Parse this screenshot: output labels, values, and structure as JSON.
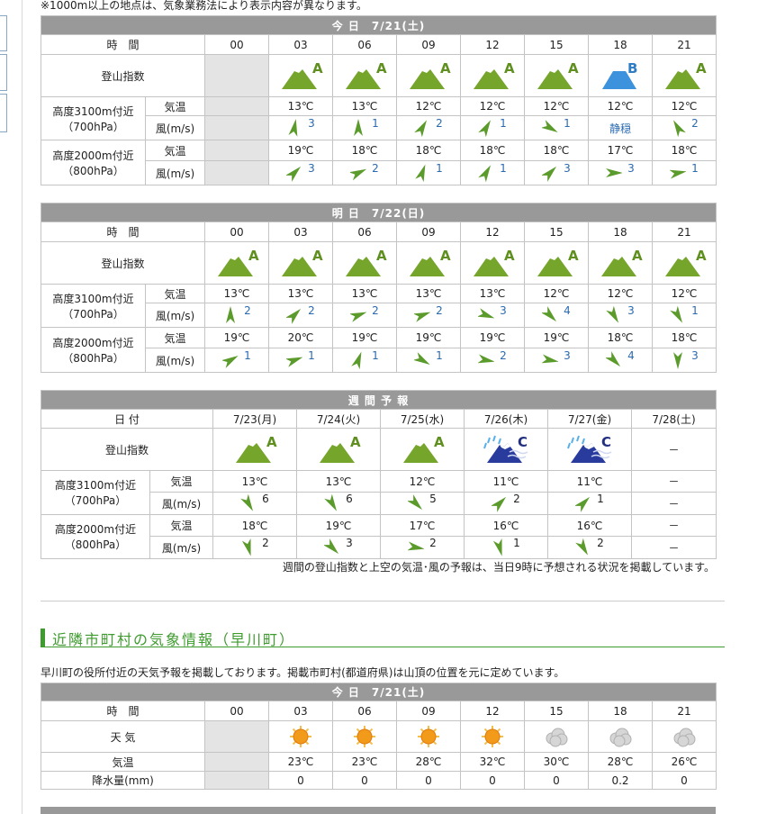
{
  "note": "※1000m以上の地点は、気象業務法により表示内容が異なります。",
  "today": {
    "title": "今 日　7/21(土)",
    "time_label": "時　間",
    "times": [
      "00",
      "03",
      "06",
      "09",
      "12",
      "15",
      "18",
      "21"
    ],
    "index_label": "登山指数",
    "index": [
      null,
      "A",
      "A",
      "A",
      "A",
      "A",
      "B",
      "A"
    ],
    "levels": [
      {
        "name": "高度3100m付近",
        "sub": "（700hPa）",
        "temp_label": "気温",
        "wind_label": "風(m/s)",
        "temp": [
          null,
          "13℃",
          "13℃",
          "12℃",
          "12℃",
          "12℃",
          "12℃",
          "12℃"
        ],
        "wind": [
          null,
          {
            "speed": 3,
            "dir": 10
          },
          {
            "speed": 1,
            "dir": 0
          },
          {
            "speed": 2,
            "dir": 30
          },
          {
            "speed": 1,
            "dir": 30
          },
          {
            "speed": 1,
            "dir": 120
          },
          {
            "speed": "静穏",
            "dir": null
          },
          {
            "speed": 2,
            "dir": -30
          }
        ]
      },
      {
        "name": "高度2000m付近",
        "sub": "（800hPa）",
        "temp_label": "気温",
        "wind_label": "風(m/s)",
        "temp": [
          null,
          "19℃",
          "18℃",
          "18℃",
          "18℃",
          "18℃",
          "17℃",
          "18℃"
        ],
        "wind": [
          null,
          {
            "speed": 3,
            "dir": 45
          },
          {
            "speed": 2,
            "dir": 65
          },
          {
            "speed": 1,
            "dir": 20
          },
          {
            "speed": 1,
            "dir": 30
          },
          {
            "speed": 3,
            "dir": 45
          },
          {
            "speed": 3,
            "dir": 90
          },
          {
            "speed": 1,
            "dir": 80
          }
        ]
      }
    ]
  },
  "tomorrow": {
    "title": "明 日　7/22(日)",
    "time_label": "時　間",
    "times": [
      "00",
      "03",
      "06",
      "09",
      "12",
      "15",
      "18",
      "21"
    ],
    "index_label": "登山指数",
    "index": [
      "A",
      "A",
      "A",
      "A",
      "A",
      "A",
      "A",
      "A"
    ],
    "levels": [
      {
        "name": "高度3100m付近",
        "sub": "（700hPa）",
        "temp_label": "気温",
        "wind_label": "風(m/s)",
        "temp": [
          "13℃",
          "13℃",
          "13℃",
          "13℃",
          "13℃",
          "12℃",
          "12℃",
          "12℃"
        ],
        "wind": [
          {
            "speed": 2,
            "dir": 0
          },
          {
            "speed": 2,
            "dir": 45
          },
          {
            "speed": 2,
            "dir": 70
          },
          {
            "speed": 2,
            "dir": 70
          },
          {
            "speed": 3,
            "dir": 110
          },
          {
            "speed": 4,
            "dir": 135
          },
          {
            "speed": 3,
            "dir": 150
          },
          {
            "speed": 1,
            "dir": 150
          }
        ]
      },
      {
        "name": "高度2000m付近",
        "sub": "（800hPa）",
        "temp_label": "気温",
        "wind_label": "風(m/s)",
        "temp": [
          "19℃",
          "20℃",
          "19℃",
          "19℃",
          "19℃",
          "19℃",
          "18℃",
          "18℃"
        ],
        "wind": [
          {
            "speed": 1,
            "dir": 60
          },
          {
            "speed": 1,
            "dir": 70
          },
          {
            "speed": 1,
            "dir": 20
          },
          {
            "speed": 1,
            "dir": 120
          },
          {
            "speed": 2,
            "dir": 100
          },
          {
            "speed": 3,
            "dir": 100
          },
          {
            "speed": 4,
            "dir": 135
          },
          {
            "speed": 3,
            "dir": 180
          }
        ]
      }
    ]
  },
  "weekly": {
    "title": "週 間 予 報",
    "date_label": "日 付",
    "dates": [
      "7/23(月)",
      "7/24(火)",
      "7/25(水)",
      "7/26(木)",
      "7/27(金)",
      "7/28(土)"
    ],
    "index_label": "登山指数",
    "index": [
      "A",
      "A",
      "A",
      "C",
      "C",
      "－"
    ],
    "levels": [
      {
        "name": "高度3100m付近",
        "sub": "（700hPa）",
        "temp_label": "気温",
        "wind_label": "風(m/s)",
        "temp": [
          "13℃",
          "13℃",
          "12℃",
          "11℃",
          "11℃",
          "－"
        ],
        "wind": [
          {
            "speed": 6,
            "dir": 150
          },
          {
            "speed": 6,
            "dir": 150
          },
          {
            "speed": 5,
            "dir": 135
          },
          {
            "speed": 2,
            "dir": 45
          },
          {
            "speed": 1,
            "dir": 45
          },
          "－"
        ]
      },
      {
        "name": "高度2000m付近",
        "sub": "（800hPa）",
        "temp_label": "気温",
        "wind_label": "風(m/s)",
        "temp": [
          "18℃",
          "19℃",
          "17℃",
          "16℃",
          "16℃",
          "－"
        ],
        "wind": [
          {
            "speed": 2,
            "dir": 165
          },
          {
            "speed": 3,
            "dir": 135
          },
          {
            "speed": 2,
            "dir": 100
          },
          {
            "speed": 1,
            "dir": 165
          },
          {
            "speed": 2,
            "dir": 150
          },
          "－"
        ]
      }
    ],
    "note": "週間の登山指数と上空の気温･風の予報は、当日9時に予想される状況を掲載しています。"
  },
  "nearby": {
    "heading": "近隣市町村の気象情報（早川町）",
    "description": "早川町の役所付近の天気予報を掲載しております。掲載市町村(都道府県)は山頂の位置を元に定めています。",
    "table": {
      "title": "今 日　7/21(土)",
      "time_label": "時　間",
      "times": [
        "00",
        "03",
        "06",
        "09",
        "12",
        "15",
        "18",
        "21"
      ],
      "weather_label": "天 気",
      "weather": [
        null,
        "sun",
        "sun",
        "sun",
        "sun",
        "cloud",
        "cloud",
        "cloud"
      ],
      "temp_label": "気温",
      "temp": [
        null,
        "23℃",
        "23℃",
        "28℃",
        "32℃",
        "30℃",
        "28℃",
        "26℃"
      ],
      "precip_label": "降水量(mm)",
      "precip": [
        null,
        0,
        0,
        0,
        0,
        0,
        0.2,
        0
      ]
    }
  }
}
